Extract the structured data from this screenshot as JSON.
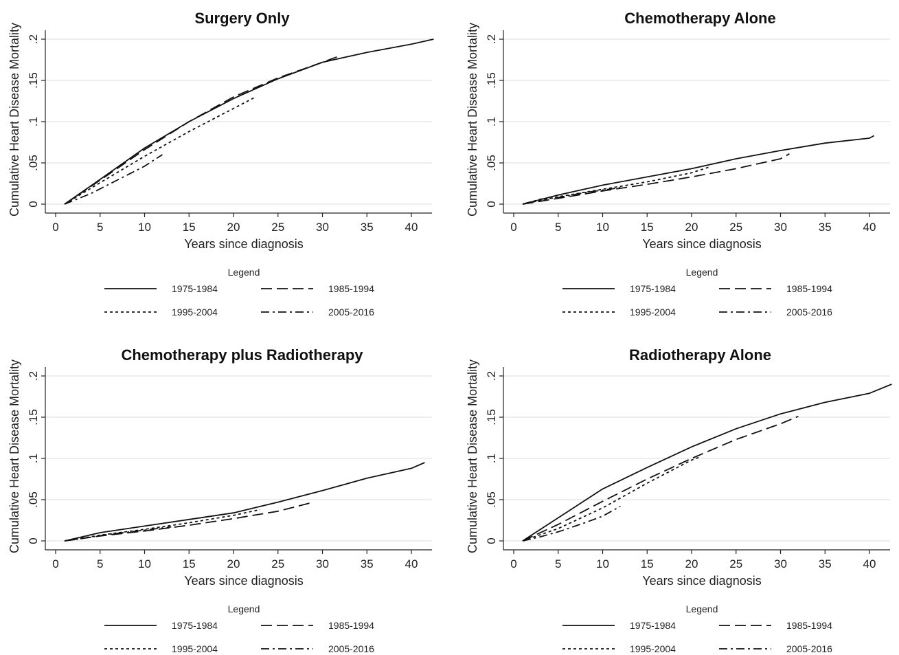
{
  "figure": {
    "x_label": "Years since diagnosis",
    "y_label": "Cumulative Heart Disease Mortality",
    "legend_title": "Legend",
    "x_ticks": [
      "0",
      "5",
      "10",
      "15",
      "20",
      "25",
      "30",
      "35",
      "40"
    ],
    "y_ticks": [
      "0",
      ".05",
      ".1",
      ".15",
      ".2"
    ],
    "x_tick_values": [
      0,
      5,
      10,
      15,
      20,
      25,
      30,
      35,
      40
    ],
    "y_tick_values": [
      0,
      0.05,
      0.1,
      0.15,
      0.2
    ],
    "series_styles": [
      {
        "name": "1975-1984",
        "dash": "solid",
        "color": "#111111"
      },
      {
        "name": "1985-1994",
        "dash": "long-dash",
        "color": "#111111"
      },
      {
        "name": "1995-2004",
        "dash": "short-dash",
        "color": "#111111"
      },
      {
        "name": "2005-2016",
        "dash": "dash-dot",
        "color": "#111111"
      }
    ],
    "colors": {
      "gridline": "#e3e3e3",
      "axis": "#222222",
      "line": "#111111"
    }
  },
  "chart_data": [
    {
      "type": "line",
      "title": "Surgery Only",
      "xlabel": "Years since diagnosis",
      "ylabel": "Cumulative Heart Disease Mortality",
      "xlim": [
        0,
        43
      ],
      "ylim": [
        0,
        0.2
      ],
      "grid": true,
      "legend_position": "bottom",
      "series": [
        {
          "name": "1975-1984",
          "x": [
            1,
            5,
            10,
            15,
            20,
            25,
            30,
            35,
            40,
            42.5
          ],
          "y": [
            0,
            0.03,
            0.068,
            0.1,
            0.128,
            0.152,
            0.172,
            0.184,
            0.194,
            0.2
          ]
        },
        {
          "name": "1985-1994",
          "x": [
            1,
            5,
            10,
            15,
            20,
            25,
            30,
            32
          ],
          "y": [
            0,
            0.029,
            0.066,
            0.1,
            0.13,
            0.153,
            0.172,
            0.18
          ]
        },
        {
          "name": "1995-2004",
          "x": [
            1,
            5,
            10,
            15,
            20,
            22.5
          ],
          "y": [
            0,
            0.026,
            0.058,
            0.088,
            0.116,
            0.13
          ]
        },
        {
          "name": "2005-2016",
          "x": [
            1,
            4,
            8,
            10,
            12
          ],
          "y": [
            0,
            0.013,
            0.035,
            0.046,
            0.06
          ]
        }
      ]
    },
    {
      "type": "line",
      "title": "Chemotherapy Alone",
      "xlabel": "Years since diagnosis",
      "ylabel": "Cumulative Heart Disease Mortality",
      "xlim": [
        0,
        43
      ],
      "ylim": [
        0,
        0.2
      ],
      "grid": true,
      "legend_position": "bottom",
      "series": [
        {
          "name": "1975-1984",
          "x": [
            1,
            5,
            10,
            15,
            20,
            25,
            30,
            35,
            40,
            40.5
          ],
          "y": [
            0,
            0.011,
            0.023,
            0.033,
            0.043,
            0.055,
            0.065,
            0.074,
            0.08,
            0.083
          ]
        },
        {
          "name": "1985-1994",
          "x": [
            1,
            5,
            10,
            15,
            20,
            25,
            30,
            31
          ],
          "y": [
            0,
            0.007,
            0.016,
            0.024,
            0.033,
            0.043,
            0.055,
            0.061
          ]
        },
        {
          "name": "1995-2004",
          "x": [
            1,
            5,
            10,
            15,
            20,
            22
          ],
          "y": [
            0,
            0.009,
            0.018,
            0.027,
            0.038,
            0.045
          ]
        },
        {
          "name": "2005-2016",
          "x": [
            1,
            3,
            5,
            8,
            12
          ],
          "y": [
            0,
            0.006,
            0.008,
            0.014,
            0.02
          ]
        }
      ]
    },
    {
      "type": "line",
      "title": "Chemotherapy plus Radiotherapy",
      "xlabel": "Years since diagnosis",
      "ylabel": "Cumulative Heart Disease Mortality",
      "xlim": [
        0,
        43
      ],
      "ylim": [
        0,
        0.2
      ],
      "grid": true,
      "legend_position": "bottom",
      "series": [
        {
          "name": "1975-1984",
          "x": [
            1,
            5,
            10,
            15,
            20,
            25,
            30,
            35,
            40,
            41.5
          ],
          "y": [
            0,
            0.01,
            0.018,
            0.026,
            0.034,
            0.047,
            0.061,
            0.076,
            0.088,
            0.095
          ]
        },
        {
          "name": "1985-1994",
          "x": [
            1,
            5,
            10,
            15,
            20,
            25,
            29
          ],
          "y": [
            0,
            0.006,
            0.012,
            0.019,
            0.027,
            0.036,
            0.047
          ]
        },
        {
          "name": "1995-2004",
          "x": [
            1,
            5,
            10,
            15,
            20,
            23
          ],
          "y": [
            0,
            0.007,
            0.014,
            0.022,
            0.031,
            0.038
          ]
        },
        {
          "name": "2005-2016",
          "x": [
            1,
            3,
            6,
            10,
            13
          ],
          "y": [
            0,
            0.003,
            0.008,
            0.013,
            0.017
          ]
        }
      ]
    },
    {
      "type": "line",
      "title": "Radiotherapy Alone",
      "xlabel": "Years since diagnosis",
      "ylabel": "Cumulative Heart Disease Mortality",
      "xlim": [
        0,
        43
      ],
      "ylim": [
        0,
        0.2
      ],
      "grid": true,
      "legend_position": "bottom",
      "series": [
        {
          "name": "1975-1984",
          "x": [
            1,
            3,
            5,
            10,
            15,
            20,
            25,
            30,
            35,
            40,
            42.5
          ],
          "y": [
            0,
            0.014,
            0.028,
            0.063,
            0.089,
            0.114,
            0.136,
            0.154,
            0.168,
            0.179,
            0.19
          ]
        },
        {
          "name": "1985-1994",
          "x": [
            1,
            5,
            10,
            15,
            20,
            25,
            30,
            32
          ],
          "y": [
            0,
            0.02,
            0.048,
            0.075,
            0.1,
            0.123,
            0.142,
            0.151
          ]
        },
        {
          "name": "1995-2004",
          "x": [
            1,
            5,
            10,
            15,
            20,
            21
          ],
          "y": [
            0,
            0.015,
            0.04,
            0.07,
            0.098,
            0.102
          ]
        },
        {
          "name": "2005-2016",
          "x": [
            1,
            3,
            5,
            8,
            10,
            12
          ],
          "y": [
            0,
            0.005,
            0.011,
            0.022,
            0.03,
            0.042
          ]
        }
      ]
    }
  ]
}
